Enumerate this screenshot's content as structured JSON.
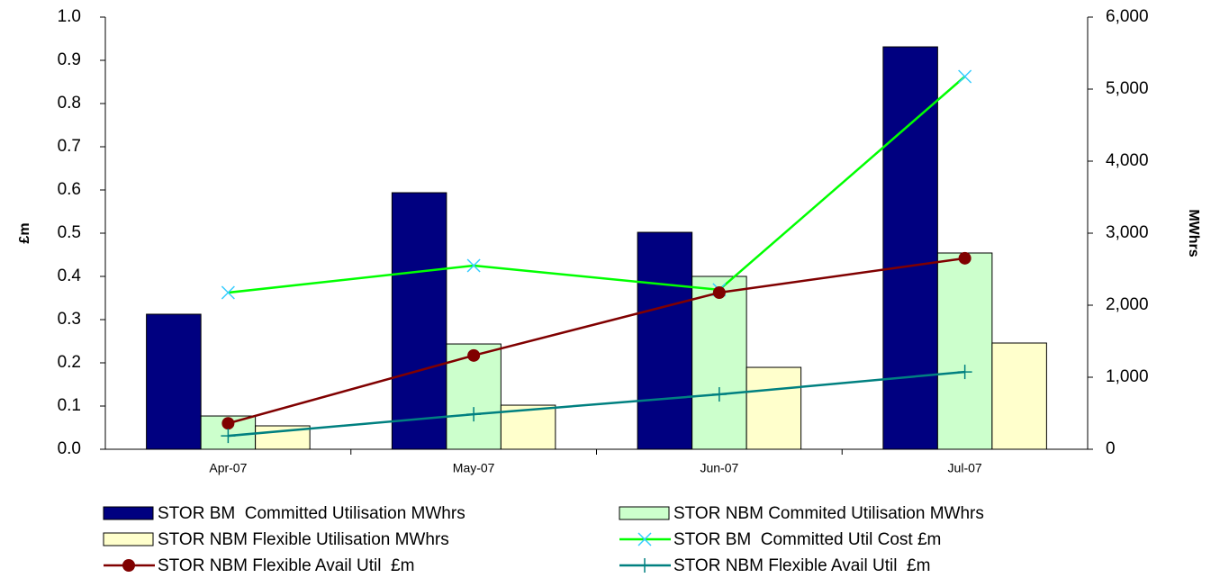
{
  "chart_data": {
    "type": "bar",
    "categories": [
      "Apr-07",
      "May-07",
      "Jun-07",
      "Jul-07"
    ],
    "ylabel": "£m",
    "y2label": "MWhrs",
    "ylim": [
      0,
      1.0
    ],
    "yticks": [
      {
        "value": 0,
        "label": "0.0"
      },
      0.1,
      0.2,
      0.3,
      0.4,
      0.5,
      0.6,
      0.7,
      0.8,
      0.9,
      {
        "value": 1.0,
        "label": "1.0"
      }
    ],
    "y2lim": [
      0,
      6000
    ],
    "y2ticks": [
      0,
      {
        "value": 1000,
        "label": "1,000"
      },
      {
        "value": 2000,
        "label": "2,000"
      },
      {
        "value": 3000,
        "label": "3,000"
      },
      {
        "value": 4000,
        "label": "4,000"
      },
      {
        "value": 5000,
        "label": "5,000"
      },
      {
        "value": 6000,
        "label": "6,000"
      }
    ],
    "series": [
      {
        "name": "STOR BM  Committed Utilisation MWhrs",
        "type": "bar",
        "axis": "y2",
        "color": "#000080",
        "values": [
          1875,
          3562,
          3012,
          5587
        ]
      },
      {
        "name": "STOR NBM Commited Utilisation MWhrs",
        "type": "bar",
        "axis": "y2",
        "color": "#ccffcc",
        "values": [
          462,
          1462,
          2400,
          2725
        ]
      },
      {
        "name": "STOR NBM Flexible Utilisation MWhrs",
        "type": "bar",
        "axis": "y2",
        "color": "#ffffcc",
        "values": [
          325,
          612,
          1137,
          1475
        ]
      },
      {
        "name": "STOR BM  Committed Util Cost £m",
        "type": "line",
        "color": "#00ff00",
        "marker": "x",
        "marker_color": "#33ccff",
        "values": [
          0.3625,
          0.425,
          0.369,
          0.8625
        ]
      },
      {
        "name": "STOR NBM Flexible Avail Util  £m",
        "type": "line",
        "color": "#800000",
        "marker": "circle",
        "marker_color": "#800000",
        "values": [
          0.06,
          0.217,
          0.3625,
          0.442
        ]
      },
      {
        "name": "STOR NBM Flexible Avail Util  £m",
        "type": "line",
        "color": "#008080",
        "marker": "plus",
        "marker_color": "#008080",
        "values": [
          0.031,
          0.081,
          0.127,
          0.179
        ]
      }
    ]
  }
}
